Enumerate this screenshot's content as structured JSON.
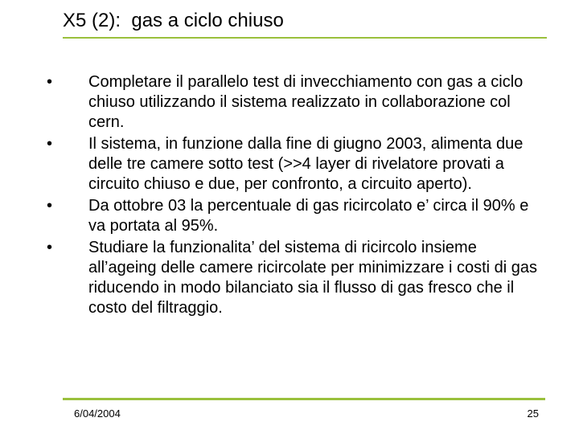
{
  "colors": {
    "accent": "#9ac03c",
    "text": "#000000",
    "background": "#ffffff"
  },
  "title": "X5 (2):  gas a ciclo chiuso",
  "bullets": [
    "Completare il parallelo test di invecchiamento con gas a ciclo chiuso utilizzando il sistema realizzato in collaborazione col cern.",
    " Il sistema, in funzione dalla fine di giugno 2003, alimenta due delle tre camere sotto test (>>4 layer di rivelatore  provati a circuito chiuso e due, per confronto, a circuito aperto).",
    " Da ottobre 03 la percentuale di gas ricircolato e’ circa il 90% e va portata al 95%.",
    "Studiare la funzionalita’ del sistema di ricircolo insieme all’ageing delle camere ricircolate per minimizzare i costi di gas riducendo in modo bilanciato sia il flusso di gas fresco che il costo del filtraggio."
  ],
  "footer": {
    "date": "6/04/2004",
    "page": "25"
  },
  "typography": {
    "title_fontsize": 24,
    "body_fontsize": 20,
    "footer_fontsize": 13,
    "line_height": 25
  }
}
